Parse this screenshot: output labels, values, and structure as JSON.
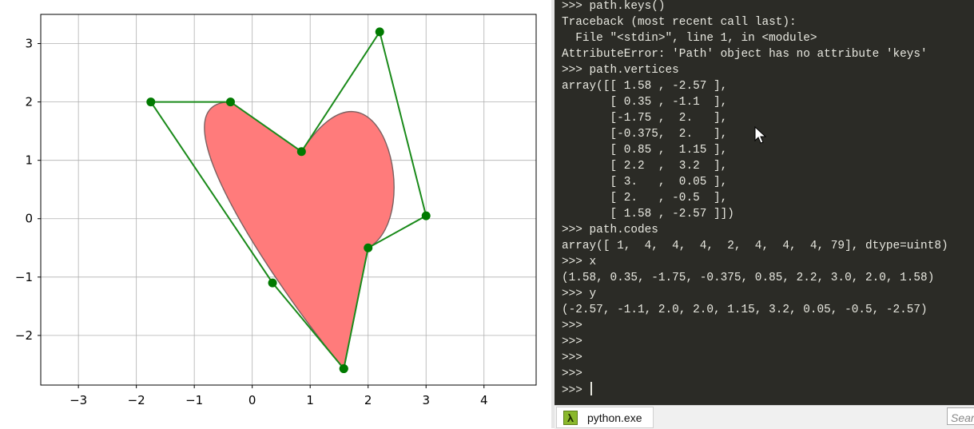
{
  "chart_data": {
    "type": "line",
    "xlim": [
      -3.65,
      4.9
    ],
    "ylim": [
      -2.85,
      3.5
    ],
    "xticks": [
      -3,
      -2,
      -1,
      0,
      1,
      2,
      3,
      4
    ],
    "yticks": [
      -2,
      -1,
      0,
      1,
      2,
      3
    ],
    "xtick_labels": [
      "−3",
      "−2",
      "−1",
      "0",
      "1",
      "2",
      "3",
      "4"
    ],
    "ytick_labels": [
      "−2",
      "−1",
      "0",
      "1",
      "2",
      "3"
    ],
    "grid": true,
    "polygon": {
      "x": [
        1.58,
        0.35,
        -1.75,
        -0.375,
        0.85,
        2.2,
        3.0,
        2.0,
        1.58
      ],
      "y": [
        -2.57,
        -1.1,
        2.0,
        2.0,
        1.15,
        3.2,
        0.05,
        -0.5,
        -2.57
      ],
      "color": "#1a8a1a",
      "marker_color": "#007a00"
    },
    "heart_patch": {
      "codes": [
        1,
        4,
        4,
        4,
        2,
        4,
        4,
        4,
        79
      ],
      "fill": "#ff7b7b",
      "edge": "#7a6060"
    }
  },
  "console": {
    "lines": [
      ">>> path.keys()",
      "Traceback (most recent call last):",
      "  File \"<stdin>\", line 1, in <module>",
      "AttributeError: 'Path' object has no attribute 'keys'",
      ">>> path.vertices",
      "array([[ 1.58 , -2.57 ],",
      "       [ 0.35 , -1.1  ],",
      "       [-1.75 ,  2.   ],",
      "       [-0.375,  2.   ],",
      "       [ 0.85 ,  1.15 ],",
      "       [ 2.2  ,  3.2  ],",
      "       [ 3.   ,  0.05 ],",
      "       [ 2.   , -0.5  ],",
      "       [ 1.58 , -2.57 ]])",
      ">>> path.codes",
      "array([ 1,  4,  4,  4,  2,  4,  4,  4, 79], dtype=uint8)",
      ">>> x",
      "(1.58, 0.35, -1.75, -0.375, 0.85, 2.2, 3.0, 2.0, 1.58)",
      ">>> y",
      "(-2.57, -1.1, 2.0, 2.0, 1.15, 3.2, 0.05, -0.5, -2.57)",
      ">>>",
      ">>>",
      ">>>",
      ">>>",
      ">>> "
    ]
  },
  "taskbar": {
    "app_label": "python.exe",
    "app_icon": "lambda-icon",
    "search_placeholder": "Search"
  },
  "colors": {
    "console_bg": "#2b2b26",
    "console_fg": "#e8e8e0"
  }
}
